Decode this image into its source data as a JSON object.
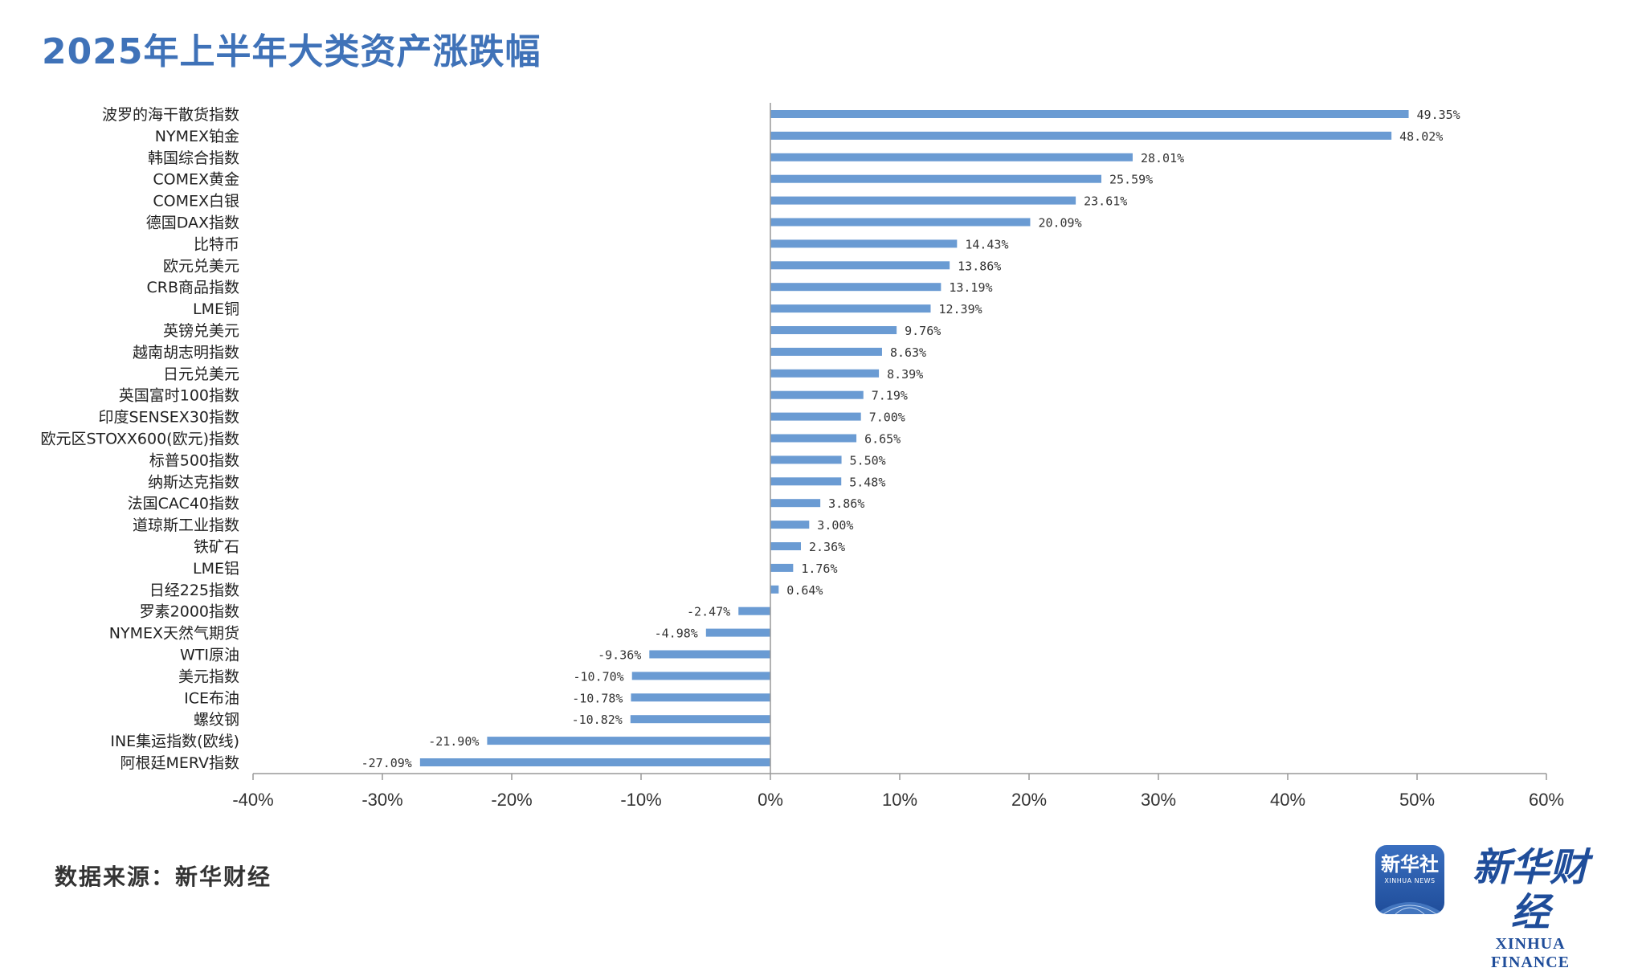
{
  "title": "2025年上半年大类资产涨跌幅",
  "source": "数据来源：新华财经",
  "logo": {
    "badge_main": "新华社",
    "badge_sub": "XINHUA NEWS",
    "brand_cn": "新华财经",
    "brand_en": "XINHUA FINANCE"
  },
  "colors": {
    "bar": "#6a9bd3",
    "title": "#3f72b8",
    "axis": "#999999"
  },
  "chart_data": {
    "type": "bar",
    "orientation": "horizontal",
    "title": "2025年上半年大类资产涨跌幅",
    "xlim": [
      -40,
      60
    ],
    "xticks": [
      -40,
      -30,
      -20,
      -10,
      0,
      10,
      20,
      30,
      40,
      50,
      60
    ],
    "xtick_labels": [
      "-40%",
      "-30%",
      "-20%",
      "-10%",
      "0%",
      "10%",
      "20%",
      "30%",
      "40%",
      "50%",
      "60%"
    ],
    "categories": [
      "波罗的海干散货指数",
      "NYMEX铂金",
      "韩国综合指数",
      "COMEX黄金",
      "COMEX白银",
      "德国DAX指数",
      "比特币",
      "欧元兑美元",
      "CRB商品指数",
      "LME铜",
      "英镑兑美元",
      "越南胡志明指数",
      "日元兑美元",
      "英国富时100指数",
      "印度SENSEX30指数",
      "欧元区STOXX600(欧元)指数",
      "标普500指数",
      "纳斯达克指数",
      "法国CAC40指数",
      "道琼斯工业指数",
      "铁矿石",
      "LME铝",
      "日经225指数",
      "罗素2000指数",
      "NYMEX天然气期货",
      "WTI原油",
      "美元指数",
      "ICE布油",
      "螺纹钢",
      "INE集运指数(欧线)",
      "阿根廷MERV指数"
    ],
    "values": [
      49.35,
      48.02,
      28.01,
      25.59,
      23.61,
      20.09,
      14.43,
      13.86,
      13.19,
      12.39,
      9.76,
      8.63,
      8.39,
      7.19,
      7.0,
      6.65,
      5.5,
      5.48,
      3.86,
      3.0,
      2.36,
      1.76,
      0.64,
      -2.47,
      -4.98,
      -9.36,
      -10.7,
      -10.78,
      -10.82,
      -21.9,
      -27.09
    ],
    "labels": [
      "49.35%",
      "48.02%",
      "28.01%",
      "25.59%",
      "23.61%",
      "20.09%",
      "14.43%",
      "13.86%",
      "13.19%",
      "12.39%",
      "9.76%",
      "8.63%",
      "8.39%",
      "7.19%",
      "7.00%",
      "6.65%",
      "5.50%",
      "5.48%",
      "3.86%",
      "3.00%",
      "2.36%",
      "1.76%",
      "0.64%",
      "-2.47%",
      "-4.98%",
      "-9.36%",
      "-10.70%",
      "-10.78%",
      "-10.82%",
      "-21.90%",
      "-27.09%"
    ],
    "grid": false,
    "legend": "none"
  }
}
